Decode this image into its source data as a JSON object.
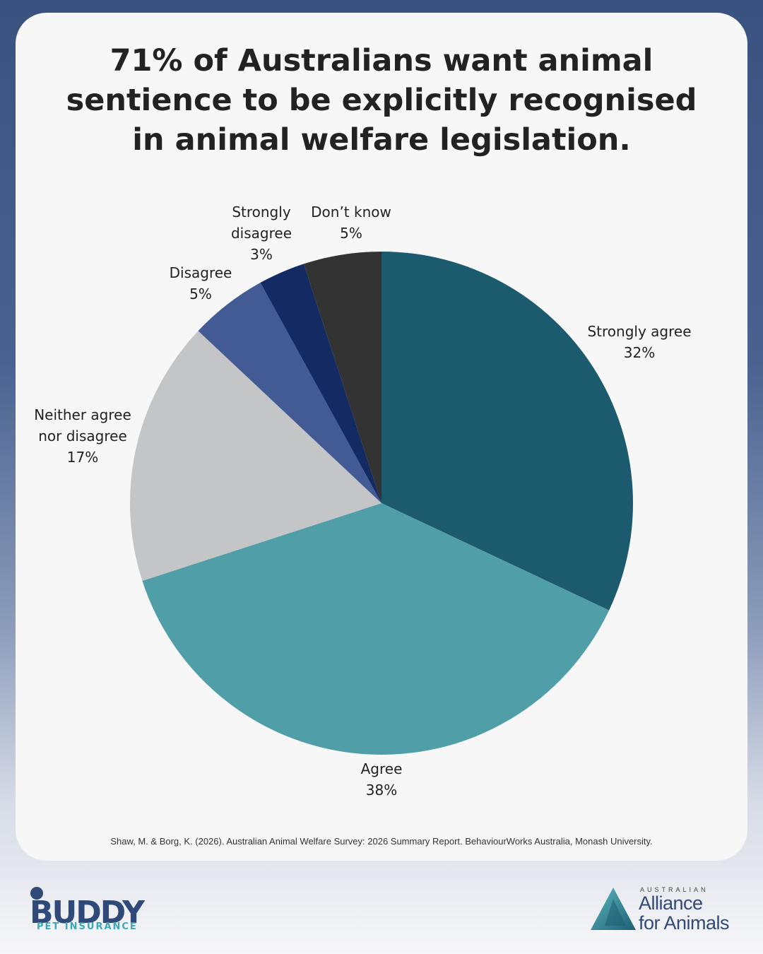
{
  "title": "71% of Australians want animal sentience to be explicitly recognised in animal welfare legislation.",
  "source": "Shaw, M. & Borg, K. (2026). Australian Animal Welfare Survey: 2026 Summary Report. BehaviourWorks Australia, Monash University.",
  "chart_data": {
    "type": "pie",
    "title": "71% of Australians want animal sentience to be explicitly recognised in animal welfare legislation.",
    "start": "12 o'clock, clockwise",
    "slices": [
      {
        "label": "Strongly agree",
        "value": 32,
        "display": "Strongly agree\n32%",
        "color": "#1c5a6e"
      },
      {
        "label": "Agree",
        "value": 38,
        "display": "Agree\n38%",
        "color": "#4f9ea8"
      },
      {
        "label": "Neither agree nor disagree",
        "value": 17,
        "display": "Neither agree\nnor disagree\n17%",
        "color": "#c4c5c7"
      },
      {
        "label": "Disagree",
        "value": 5,
        "display": "Disagree\n5%",
        "color": "#435b94"
      },
      {
        "label": "Strongly disagree",
        "value": 3,
        "display": "Strongly\ndisagree\n3%",
        "color": "#132a63"
      },
      {
        "label": "Don’t know",
        "value": 5,
        "display": "Don’t know\n5%",
        "color": "#333333"
      }
    ]
  },
  "logos": {
    "buddy": {
      "name": "BUDDY",
      "tagline": "PET INSURANCE",
      "color": "#2f4a78",
      "accent": "#3aa8b8"
    },
    "alliance": {
      "top": "AUSTRALIAN",
      "name": "Alliance\nfor Animals",
      "color": "#2f4a78",
      "icon": "triangle-a-icon"
    }
  }
}
